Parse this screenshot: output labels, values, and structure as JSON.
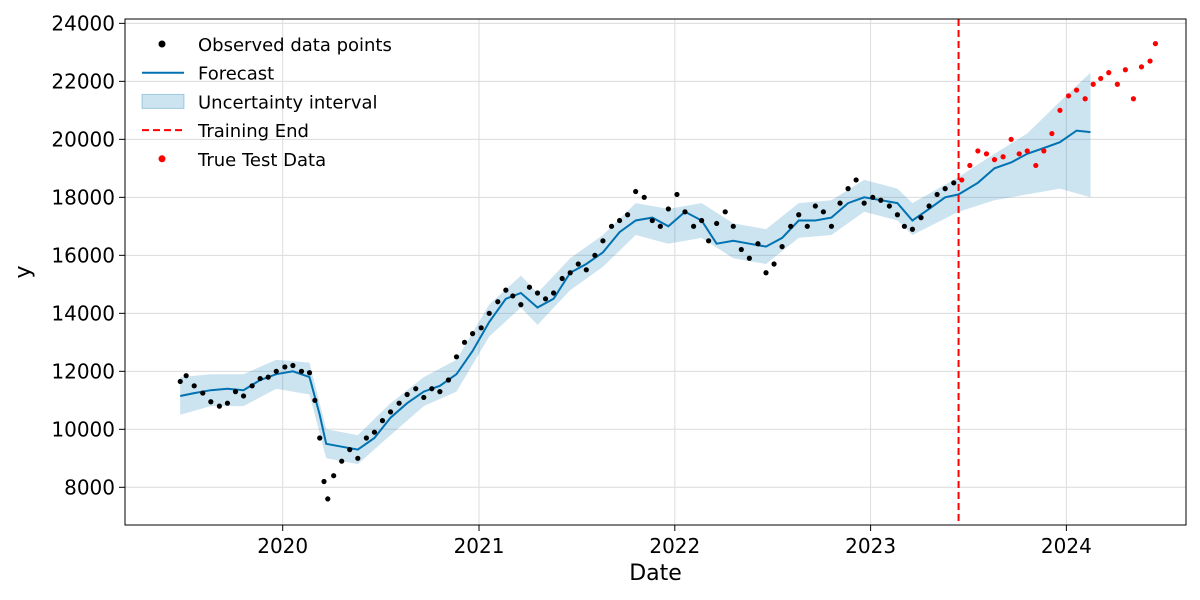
{
  "chart_data": {
    "type": "line",
    "title": "",
    "xlabel": "Date",
    "ylabel": "y",
    "xlim": [
      "2019-03-13",
      "2024-08-11"
    ],
    "ylim": [
      6700,
      24150
    ],
    "x_ticks": [
      "2020",
      "2021",
      "2022",
      "2023",
      "2024"
    ],
    "y_ticks": [
      8000,
      10000,
      12000,
      14000,
      16000,
      18000,
      20000,
      22000,
      24000
    ],
    "grid": true,
    "legend_position": "top-left",
    "legend": [
      {
        "label": "Observed data points",
        "color": "#000000",
        "marker": "dot"
      },
      {
        "label": "Forecast",
        "color": "#0072B2",
        "marker": "line"
      },
      {
        "label": "Uncertainty interval",
        "color": "#0072B2",
        "marker": "band"
      },
      {
        "label": "Training End",
        "color": "#ff0000",
        "marker": "dashed"
      },
      {
        "label": "True Test Data",
        "color": "#ff0000",
        "marker": "dot"
      }
    ],
    "training_end": "2023-06-14",
    "series": [
      {
        "name": "Observed data points",
        "color": "#000000",
        "points": [
          [
            "2019-06-24",
            11650
          ],
          [
            "2019-07-05",
            11850
          ],
          [
            "2019-07-20",
            11500
          ],
          [
            "2019-08-05",
            11250
          ],
          [
            "2019-08-20",
            10950
          ],
          [
            "2019-09-05",
            10800
          ],
          [
            "2019-09-20",
            10900
          ],
          [
            "2019-10-05",
            11300
          ],
          [
            "2019-10-20",
            11150
          ],
          [
            "2019-11-05",
            11500
          ],
          [
            "2019-11-20",
            11750
          ],
          [
            "2019-12-05",
            11800
          ],
          [
            "2019-12-20",
            12000
          ],
          [
            "2020-01-05",
            12150
          ],
          [
            "2020-01-20",
            12200
          ],
          [
            "2020-02-05",
            12000
          ],
          [
            "2020-02-20",
            11950
          ],
          [
            "2020-03-01",
            11000
          ],
          [
            "2020-03-10",
            9700
          ],
          [
            "2020-03-18",
            8200
          ],
          [
            "2020-03-25",
            7600
          ],
          [
            "2020-04-05",
            8400
          ],
          [
            "2020-04-20",
            8900
          ],
          [
            "2020-05-05",
            9300
          ],
          [
            "2020-05-20",
            9000
          ],
          [
            "2020-06-05",
            9700
          ],
          [
            "2020-06-20",
            9900
          ],
          [
            "2020-07-05",
            10300
          ],
          [
            "2020-07-20",
            10600
          ],
          [
            "2020-08-05",
            10900
          ],
          [
            "2020-08-20",
            11200
          ],
          [
            "2020-09-05",
            11400
          ],
          [
            "2020-09-20",
            11100
          ],
          [
            "2020-10-05",
            11400
          ],
          [
            "2020-10-20",
            11300
          ],
          [
            "2020-11-05",
            11700
          ],
          [
            "2020-11-20",
            12500
          ],
          [
            "2020-12-05",
            13000
          ],
          [
            "2020-12-20",
            13300
          ],
          [
            "2021-01-05",
            13500
          ],
          [
            "2021-01-20",
            14000
          ],
          [
            "2021-02-05",
            14400
          ],
          [
            "2021-02-20",
            14800
          ],
          [
            "2021-03-05",
            14600
          ],
          [
            "2021-03-20",
            14300
          ],
          [
            "2021-04-05",
            14900
          ],
          [
            "2021-04-20",
            14700
          ],
          [
            "2021-05-05",
            14500
          ],
          [
            "2021-05-20",
            14700
          ],
          [
            "2021-06-05",
            15200
          ],
          [
            "2021-06-20",
            15400
          ],
          [
            "2021-07-05",
            15700
          ],
          [
            "2021-07-20",
            15500
          ],
          [
            "2021-08-05",
            16000
          ],
          [
            "2021-08-20",
            16500
          ],
          [
            "2021-09-05",
            17000
          ],
          [
            "2021-09-20",
            17200
          ],
          [
            "2021-10-05",
            17400
          ],
          [
            "2021-10-20",
            18200
          ],
          [
            "2021-11-05",
            18000
          ],
          [
            "2021-11-20",
            17200
          ],
          [
            "2021-12-05",
            17000
          ],
          [
            "2021-12-20",
            17600
          ],
          [
            "2022-01-05",
            18100
          ],
          [
            "2022-01-20",
            17500
          ],
          [
            "2022-02-05",
            17000
          ],
          [
            "2022-02-20",
            17200
          ],
          [
            "2022-03-05",
            16500
          ],
          [
            "2022-03-20",
            17100
          ],
          [
            "2022-04-05",
            17500
          ],
          [
            "2022-04-20",
            17000
          ],
          [
            "2022-05-05",
            16200
          ],
          [
            "2022-05-20",
            15900
          ],
          [
            "2022-06-05",
            16400
          ],
          [
            "2022-06-20",
            15400
          ],
          [
            "2022-07-05",
            15700
          ],
          [
            "2022-07-20",
            16300
          ],
          [
            "2022-08-05",
            17000
          ],
          [
            "2022-08-20",
            17400
          ],
          [
            "2022-09-05",
            17000
          ],
          [
            "2022-09-20",
            17700
          ],
          [
            "2022-10-05",
            17500
          ],
          [
            "2022-10-20",
            17000
          ],
          [
            "2022-11-05",
            17800
          ],
          [
            "2022-11-20",
            18300
          ],
          [
            "2022-12-05",
            18600
          ],
          [
            "2022-12-20",
            17800
          ],
          [
            "2023-01-05",
            18000
          ],
          [
            "2023-01-20",
            17900
          ],
          [
            "2023-02-05",
            17700
          ],
          [
            "2023-02-20",
            17400
          ],
          [
            "2023-03-05",
            17000
          ],
          [
            "2023-03-20",
            16900
          ],
          [
            "2023-04-05",
            17300
          ],
          [
            "2023-04-20",
            17700
          ],
          [
            "2023-05-05",
            18100
          ],
          [
            "2023-05-20",
            18300
          ],
          [
            "2023-06-05",
            18500
          ]
        ]
      },
      {
        "name": "Forecast",
        "color": "#0072B2",
        "points": [
          [
            "2019-06-24",
            11150
          ],
          [
            "2019-07-20",
            11250
          ],
          [
            "2019-08-20",
            11350
          ],
          [
            "2019-09-20",
            11400
          ],
          [
            "2019-10-20",
            11350
          ],
          [
            "2019-11-20",
            11700
          ],
          [
            "2019-12-20",
            11900
          ],
          [
            "2020-01-20",
            12000
          ],
          [
            "2020-02-20",
            11800
          ],
          [
            "2020-03-10",
            10500
          ],
          [
            "2020-03-22",
            9500
          ],
          [
            "2020-04-20",
            9400
          ],
          [
            "2020-05-20",
            9300
          ],
          [
            "2020-06-20",
            9700
          ],
          [
            "2020-07-20",
            10400
          ],
          [
            "2020-08-20",
            10900
          ],
          [
            "2020-09-20",
            11300
          ],
          [
            "2020-10-20",
            11500
          ],
          [
            "2020-11-20",
            11900
          ],
          [
            "2020-12-20",
            12700
          ],
          [
            "2021-01-20",
            13700
          ],
          [
            "2021-02-20",
            14500
          ],
          [
            "2021-03-20",
            14700
          ],
          [
            "2021-04-20",
            14200
          ],
          [
            "2021-05-20",
            14500
          ],
          [
            "2021-06-20",
            15400
          ],
          [
            "2021-07-20",
            15700
          ],
          [
            "2021-08-20",
            16100
          ],
          [
            "2021-09-20",
            16800
          ],
          [
            "2021-10-20",
            17200
          ],
          [
            "2021-11-20",
            17300
          ],
          [
            "2021-12-20",
            17000
          ],
          [
            "2022-01-20",
            17500
          ],
          [
            "2022-02-20",
            17200
          ],
          [
            "2022-03-20",
            16400
          ],
          [
            "2022-04-20",
            16500
          ],
          [
            "2022-05-20",
            16400
          ],
          [
            "2022-06-20",
            16300
          ],
          [
            "2022-07-20",
            16600
          ],
          [
            "2022-08-20",
            17200
          ],
          [
            "2022-09-20",
            17200
          ],
          [
            "2022-10-20",
            17300
          ],
          [
            "2022-11-20",
            17800
          ],
          [
            "2022-12-20",
            18000
          ],
          [
            "2023-01-20",
            17900
          ],
          [
            "2023-02-20",
            17800
          ],
          [
            "2023-03-20",
            17200
          ],
          [
            "2023-04-20",
            17600
          ],
          [
            "2023-05-20",
            18000
          ],
          [
            "2023-06-14",
            18100
          ],
          [
            "2023-07-20",
            18500
          ],
          [
            "2023-08-20",
            19000
          ],
          [
            "2023-09-20",
            19200
          ],
          [
            "2023-10-20",
            19500
          ],
          [
            "2023-11-20",
            19700
          ],
          [
            "2023-12-20",
            19900
          ],
          [
            "2024-01-20",
            20300
          ],
          [
            "2024-02-15",
            20250
          ]
        ]
      },
      {
        "name": "Uncertainty interval",
        "color": "#0072B2",
        "lower": [
          [
            "2019-06-24",
            10500
          ],
          [
            "2019-08-20",
            10800
          ],
          [
            "2019-10-20",
            10800
          ],
          [
            "2019-12-20",
            11400
          ],
          [
            "2020-02-20",
            11200
          ],
          [
            "2020-03-22",
            9000
          ],
          [
            "2020-05-20",
            8800
          ],
          [
            "2020-07-20",
            9800
          ],
          [
            "2020-09-20",
            10800
          ],
          [
            "2020-11-20",
            11300
          ],
          [
            "2021-01-20",
            13200
          ],
          [
            "2021-03-20",
            14200
          ],
          [
            "2021-04-20",
            13600
          ],
          [
            "2021-06-20",
            14800
          ],
          [
            "2021-08-20",
            15600
          ],
          [
            "2021-10-20",
            16700
          ],
          [
            "2021-12-20",
            16400
          ],
          [
            "2022-02-20",
            16600
          ],
          [
            "2022-04-20",
            15900
          ],
          [
            "2022-06-20",
            15700
          ],
          [
            "2022-08-20",
            16600
          ],
          [
            "2022-10-20",
            16700
          ],
          [
            "2022-12-20",
            17500
          ],
          [
            "2023-02-20",
            17200
          ],
          [
            "2023-03-20",
            16700
          ],
          [
            "2023-06-14",
            17500
          ],
          [
            "2023-08-20",
            17900
          ],
          [
            "2023-10-20",
            18100
          ],
          [
            "2023-12-20",
            18300
          ],
          [
            "2024-02-15",
            18000
          ]
        ],
        "upper": [
          [
            "2019-06-24",
            11800
          ],
          [
            "2019-08-20",
            11900
          ],
          [
            "2019-10-20",
            11900
          ],
          [
            "2019-12-20",
            12400
          ],
          [
            "2020-02-20",
            12300
          ],
          [
            "2020-03-22",
            10000
          ],
          [
            "2020-05-20",
            9800
          ],
          [
            "2020-07-20",
            10900
          ],
          [
            "2020-09-20",
            11800
          ],
          [
            "2020-11-20",
            12400
          ],
          [
            "2021-01-20",
            14300
          ],
          [
            "2021-03-20",
            15300
          ],
          [
            "2021-04-20",
            14700
          ],
          [
            "2021-06-20",
            15900
          ],
          [
            "2021-08-20",
            16700
          ],
          [
            "2021-10-20",
            17800
          ],
          [
            "2021-12-20",
            17600
          ],
          [
            "2022-02-20",
            17800
          ],
          [
            "2022-04-20",
            17100
          ],
          [
            "2022-06-20",
            16900
          ],
          [
            "2022-08-20",
            17800
          ],
          [
            "2022-10-20",
            17900
          ],
          [
            "2022-12-20",
            18600
          ],
          [
            "2023-02-20",
            18300
          ],
          [
            "2023-03-20",
            17800
          ],
          [
            "2023-06-14",
            18700
          ],
          [
            "2023-08-20",
            19500
          ],
          [
            "2023-10-20",
            20200
          ],
          [
            "2023-12-20",
            21300
          ],
          [
            "2024-02-15",
            22300
          ]
        ]
      },
      {
        "name": "True Test Data",
        "color": "#ff0000",
        "points": [
          [
            "2023-06-20",
            18600
          ],
          [
            "2023-07-05",
            19100
          ],
          [
            "2023-07-20",
            19600
          ],
          [
            "2023-08-05",
            19500
          ],
          [
            "2023-08-20",
            19300
          ],
          [
            "2023-09-05",
            19400
          ],
          [
            "2023-09-20",
            20000
          ],
          [
            "2023-10-05",
            19500
          ],
          [
            "2023-10-20",
            19600
          ],
          [
            "2023-11-05",
            19100
          ],
          [
            "2023-11-20",
            19600
          ],
          [
            "2023-12-05",
            20200
          ],
          [
            "2023-12-20",
            21000
          ],
          [
            "2024-01-05",
            21500
          ],
          [
            "2024-01-20",
            21700
          ],
          [
            "2024-02-05",
            21400
          ],
          [
            "2024-02-20",
            21900
          ],
          [
            "2024-03-05",
            22100
          ],
          [
            "2024-03-20",
            22300
          ],
          [
            "2024-04-05",
            21900
          ],
          [
            "2024-04-20",
            22400
          ],
          [
            "2024-05-05",
            21400
          ],
          [
            "2024-05-20",
            22500
          ],
          [
            "2024-06-05",
            22700
          ],
          [
            "2024-06-15",
            23300
          ]
        ]
      }
    ]
  }
}
